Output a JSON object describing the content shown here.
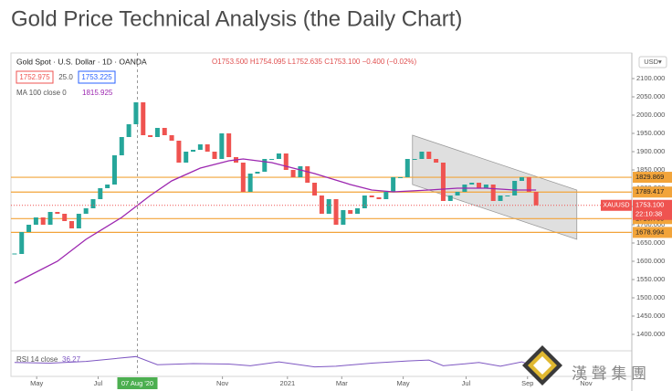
{
  "page_title": "Gold Price Technical Analysis (the Daily Chart)",
  "chart_data": {
    "type": "candlestick",
    "symbol_line": "Gold Spot · U.S. Dollar · 1D · OANDA",
    "ohlc_line": "O1753.500 H1754.095 L1752.635 C1753.100 −0.400 (−0.02%)",
    "bid": "1752.975",
    "spread": "25.0",
    "ask": "1753.225",
    "currency": "USD▾",
    "ma_label": "MA 100 close 0",
    "ma_value": "1815.925",
    "rsi_label": "RSI 14 close",
    "rsi_value": "36.27",
    "ticker": "XAUUSD",
    "countdown": "22:10:38",
    "last": {
      "value": 1753.1,
      "label": "1753.100"
    },
    "up_color": "#26a69a",
    "down_color": "#ef5350",
    "ma_color": "#9c27b0",
    "level_color": "#f2a43a",
    "close": [
      1620,
      1680,
      1700,
      1720,
      1700,
      1735,
      1730,
      1710,
      1690,
      1730,
      1745,
      1770,
      1800,
      1810,
      1890,
      1940,
      1975,
      2035,
      1945,
      1940,
      1965,
      1945,
      1930,
      1870,
      1900,
      1905,
      1920,
      1900,
      1880,
      1950,
      1885,
      1870,
      1790,
      1840,
      1845,
      1880,
      1880,
      1895,
      1850,
      1830,
      1860,
      1815,
      1780,
      1730,
      1770,
      1700,
      1740,
      1730,
      1745,
      1780,
      1775,
      1770,
      1790,
      1830,
      1830,
      1880,
      1880,
      1900,
      1880,
      1870,
      1765,
      1780,
      1790,
      1810,
      1815,
      1800,
      1810,
      1765,
      1780,
      1780,
      1820,
      1830,
      1790,
      1753.1
    ],
    "ma": {
      "x": [
        0,
        6,
        10,
        15,
        19,
        22,
        26,
        30,
        32,
        36,
        42,
        47,
        50,
        53,
        58,
        62,
        66,
        70,
        73
      ],
      "values": [
        1540,
        1600,
        1660,
        1720,
        1780,
        1820,
        1855,
        1875,
        1880,
        1870,
        1840,
        1810,
        1795,
        1790,
        1795,
        1800,
        1800,
        1795,
        1795
      ]
    },
    "rsi": {
      "x": [
        0,
        5,
        10,
        17,
        20,
        25,
        30,
        33,
        37,
        42,
        45,
        50,
        55,
        58,
        60,
        65,
        68,
        71,
        73
      ],
      "values": [
        55,
        52,
        60,
        82,
        45,
        50,
        48,
        40,
        58,
        35,
        38,
        52,
        62,
        66,
        40,
        55,
        38,
        58,
        36.27
      ]
    },
    "channel": {
      "x": [
        55.7,
        78.7
      ],
      "upper": [
        1945,
        1795
      ],
      "lower": [
        1810,
        1660
      ]
    },
    "levels": [
      1829.869,
      1789.417,
      1716.763,
      1678.994
    ],
    "xlim": [
      -0.5,
      86.4
    ],
    "xticks": [
      {
        "value": 3.1,
        "label": "May"
      },
      {
        "value": 11.7,
        "label": "Jul"
      },
      {
        "value": 17.2,
        "label": "07 Aug '20"
      },
      {
        "value": 29.1,
        "label": "Nov"
      },
      {
        "value": 38.2,
        "label": "2021"
      },
      {
        "value": 45.8,
        "label": "Mar"
      },
      {
        "value": 54.4,
        "label": "May"
      },
      {
        "value": 63.2,
        "label": "Jul"
      },
      {
        "value": 71.8,
        "label": "Sep"
      },
      {
        "value": 80.0,
        "label": "Nov"
      }
    ],
    "ylim": [
      1355,
      2170
    ],
    "yticks": [
      {
        "value": 2100,
        "label": "2100.000"
      },
      {
        "value": 2050,
        "label": "2050.000"
      },
      {
        "value": 2000,
        "label": "2000.000"
      },
      {
        "value": 1950,
        "label": "1950.000"
      },
      {
        "value": 1900,
        "label": "1900.000"
      },
      {
        "value": 1850,
        "label": "1850.000"
      },
      {
        "value": 1800,
        "label": "1800.000"
      },
      {
        "value": 1750,
        "label": "1750.000"
      },
      {
        "value": 1700,
        "label": "1700.000"
      },
      {
        "value": 1650,
        "label": "1650.000"
      },
      {
        "value": 1600,
        "label": "1600.000"
      },
      {
        "value": 1550,
        "label": "1550.000"
      },
      {
        "value": 1500,
        "label": "1500.000"
      },
      {
        "value": 1450,
        "label": "1450.000"
      },
      {
        "value": 1400,
        "label": "1400.000"
      }
    ],
    "rsi_lim": [
      0,
      100
    ],
    "watermark": "漢 聲 集 團"
  }
}
